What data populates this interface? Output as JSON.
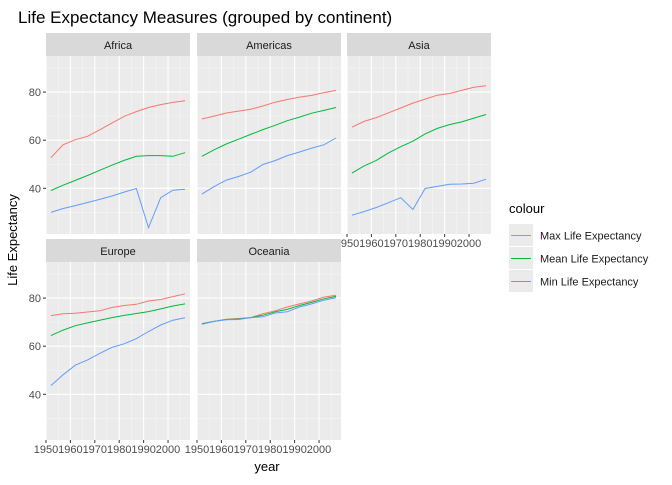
{
  "chart_data": {
    "type": "line",
    "title": "Life Expectancy Measures (grouped by continent)",
    "xlabel": "year",
    "ylabel": "Life Expectancy",
    "xlim": [
      1950,
      2009
    ],
    "ylim": [
      21,
      95
    ],
    "x_ticks": [
      1950,
      1960,
      1970,
      1980,
      1990,
      2000
    ],
    "x_tick_labels": [
      "1950",
      "1960",
      "1970",
      "1980",
      "1990",
      "2000"
    ],
    "y_ticks": [
      40,
      60,
      80
    ],
    "y_tick_labels": [
      "40",
      "60",
      "80"
    ],
    "grid": true,
    "legend": {
      "title": "colour",
      "position": "right",
      "items": [
        {
          "label": "Max Life Expectancy",
          "color": "#F8766D"
        },
        {
          "label": "Mean Life Expectancy",
          "color": "#00BA38"
        },
        {
          "label": "Min Life Expectancy",
          "color": "#619CFF"
        }
      ]
    },
    "x": [
      1952,
      1957,
      1962,
      1967,
      1972,
      1977,
      1982,
      1987,
      1992,
      1997,
      2002,
      2007
    ],
    "facets": [
      {
        "name": "Africa",
        "series": [
          {
            "name": "Max Life Expectancy",
            "color": "#F8766D",
            "values": [
              52.7,
              58.1,
              60.2,
              61.6,
              64.3,
              67.1,
              69.9,
              71.9,
              73.6,
              74.8,
              75.7,
              76.4
            ]
          },
          {
            "name": "Mean Life Expectancy",
            "color": "#00BA38",
            "values": [
              39.1,
              41.3,
              43.3,
              45.3,
              47.5,
              49.6,
              51.6,
              53.3,
              53.6,
              53.6,
              53.3,
              54.8
            ]
          },
          {
            "name": "Min Life Expectancy",
            "color": "#619CFF",
            "values": [
              30.0,
              31.6,
              32.8,
              34.1,
              35.4,
              36.8,
              38.4,
              39.9,
              23.6,
              36.1,
              39.2,
              39.6
            ]
          }
        ]
      },
      {
        "name": "Americas",
        "series": [
          {
            "name": "Max Life Expectancy",
            "color": "#F8766D",
            "values": [
              68.8,
              70.0,
              71.3,
              72.1,
              72.9,
              74.2,
              75.8,
              76.9,
              77.9,
              78.6,
              79.8,
              80.7
            ]
          },
          {
            "name": "Mean Life Expectancy",
            "color": "#00BA38",
            "values": [
              53.3,
              56.0,
              58.4,
              60.4,
              62.4,
              64.4,
              66.2,
              68.1,
              69.6,
              71.2,
              72.4,
              73.6
            ]
          },
          {
            "name": "Min Life Expectancy",
            "color": "#619CFF",
            "values": [
              37.6,
              40.7,
              43.4,
              44.9,
              46.7,
              49.9,
              51.5,
              53.6,
              55.1,
              56.7,
              58.1,
              60.9
            ]
          }
        ]
      },
      {
        "name": "Asia",
        "series": [
          {
            "name": "Max Life Expectancy",
            "color": "#F8766D",
            "values": [
              65.4,
              67.8,
              69.4,
              71.4,
              73.4,
              75.4,
              77.1,
              78.7,
              79.4,
              80.7,
              82.0,
              82.6
            ]
          },
          {
            "name": "Mean Life Expectancy",
            "color": "#00BA38",
            "values": [
              46.3,
              49.3,
              51.6,
              54.7,
              57.3,
              59.6,
              62.6,
              64.9,
              66.5,
              67.6,
              69.2,
              70.7
            ]
          },
          {
            "name": "Min Life Expectancy",
            "color": "#619CFF",
            "values": [
              28.8,
              30.3,
              32.0,
              34.0,
              36.1,
              31.2,
              39.9,
              40.8,
              41.7,
              41.8,
              42.1,
              43.8
            ]
          }
        ]
      },
      {
        "name": "Europe",
        "series": [
          {
            "name": "Max Life Expectancy",
            "color": "#F8766D",
            "values": [
              72.7,
              73.5,
              73.7,
              74.2,
              74.7,
              76.1,
              76.9,
              77.4,
              78.8,
              79.4,
              80.6,
              81.8
            ]
          },
          {
            "name": "Mean Life Expectancy",
            "color": "#00BA38",
            "values": [
              64.4,
              66.7,
              68.5,
              69.7,
              70.8,
              71.9,
              72.8,
              73.6,
              74.4,
              75.5,
              76.7,
              77.6
            ]
          },
          {
            "name": "Min Life Expectancy",
            "color": "#619CFF",
            "values": [
              43.6,
              48.1,
              52.1,
              54.3,
              57.0,
              59.5,
              61.0,
              63.1,
              66.1,
              68.8,
              70.8,
              71.8
            ]
          }
        ]
      },
      {
        "name": "Oceania",
        "series": [
          {
            "name": "Max Life Expectancy",
            "color": "#F8766D",
            "values": [
              69.4,
              70.3,
              71.2,
              71.5,
              71.9,
              73.5,
              74.7,
              76.3,
              77.6,
              78.8,
              80.4,
              81.2
            ]
          },
          {
            "name": "Mean Life Expectancy",
            "color": "#00BA38",
            "values": [
              69.3,
              70.3,
              71.1,
              71.3,
              71.9,
              72.9,
              74.3,
              75.3,
              76.9,
              78.2,
              79.7,
              80.7
            ]
          },
          {
            "name": "Min Life Expectancy",
            "color": "#619CFF",
            "values": [
              69.1,
              70.3,
              71.0,
              71.1,
              71.9,
              72.2,
              73.8,
              74.3,
              76.3,
              77.6,
              79.1,
              80.2
            ]
          }
        ]
      }
    ]
  }
}
